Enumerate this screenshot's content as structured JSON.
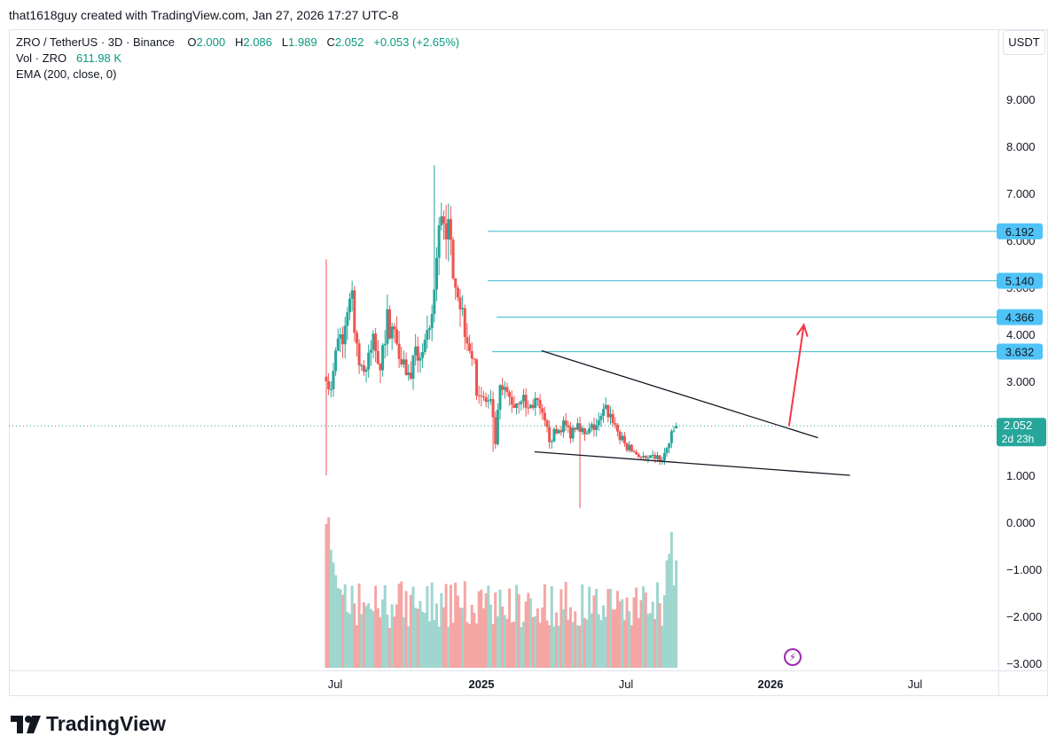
{
  "header": {
    "attribution": "that1618guy created with TradingView.com, Jan 27, 2026 17:27 UTC-8"
  },
  "legend": {
    "symbol": "ZRO / TetherUS · 3D · Binance",
    "open_label": "O",
    "open": "2.000",
    "high_label": "H",
    "high": "2.086",
    "low_label": "L",
    "low": "1.989",
    "close_label": "C",
    "close": "2.052",
    "change": "+0.053 (+2.65%)",
    "volume_label": "Vol · ZRO",
    "volume": "611.98 K",
    "indicator": "EMA (200, close, 0)"
  },
  "currency": "USDT",
  "footer": {
    "brand": "TradingView"
  },
  "colors": {
    "up": "#26a69a",
    "down": "#ef5350",
    "level": "#56c4d3",
    "trend": "#131722",
    "arrow": "#f23645",
    "price_line": "#26a69a",
    "volume_up": "#9fd6cf",
    "volume_down": "#f5a6a4"
  },
  "chart_data": {
    "type": "candlestick",
    "x_ticks": [
      "Jul",
      "2025",
      "Jul",
      "2026",
      "Jul"
    ],
    "y_ticks": [
      "9.000",
      "8.000",
      "7.000",
      "6.000",
      "5.000",
      "4.000",
      "3.000",
      "2.000",
      "1.000",
      "0.000",
      "−1.000",
      "−2.000",
      "−3.000"
    ],
    "y_tick_values": [
      9,
      8,
      7,
      6,
      5,
      4,
      3,
      2,
      1,
      0,
      -1,
      -2,
      -3
    ],
    "ylim": [
      -3.2,
      9.6
    ],
    "time_range": [
      "2024-06-20",
      "2026-08-15"
    ],
    "key_points": [
      {
        "date": "2024-06-20",
        "open": 3.1,
        "high": 5.6,
        "low": 1.0,
        "close": 3.0
      },
      {
        "date": "2024-12-10",
        "high": 7.6
      },
      {
        "date": "2025-03-16",
        "low": 1.5
      },
      {
        "date": "2025-10-10",
        "low": 0.3
      },
      {
        "date": "2026-01-27",
        "close": 2.052
      }
    ],
    "horizontal_levels": [
      {
        "value": 6.192,
        "label": "6.192"
      },
      {
        "value": 5.14,
        "label": "5.140"
      },
      {
        "value": 4.366,
        "label": "4.366"
      },
      {
        "value": 3.632,
        "label": "3.632"
      }
    ],
    "trendlines": [
      {
        "from": [
          "2025-03-22",
          3.65
        ],
        "to": [
          "2026-03-10",
          1.8
        ]
      },
      {
        "from": [
          "2025-03-13",
          1.5
        ],
        "to": [
          "2026-04-20",
          1.0
        ]
      }
    ],
    "arrow": {
      "from": [
        "2026-02-01",
        2.05
      ],
      "to": [
        "2026-02-20",
        4.2
      ]
    },
    "last_price": {
      "value": 2.052,
      "label": "2.052",
      "countdown": "2d 23h"
    }
  }
}
